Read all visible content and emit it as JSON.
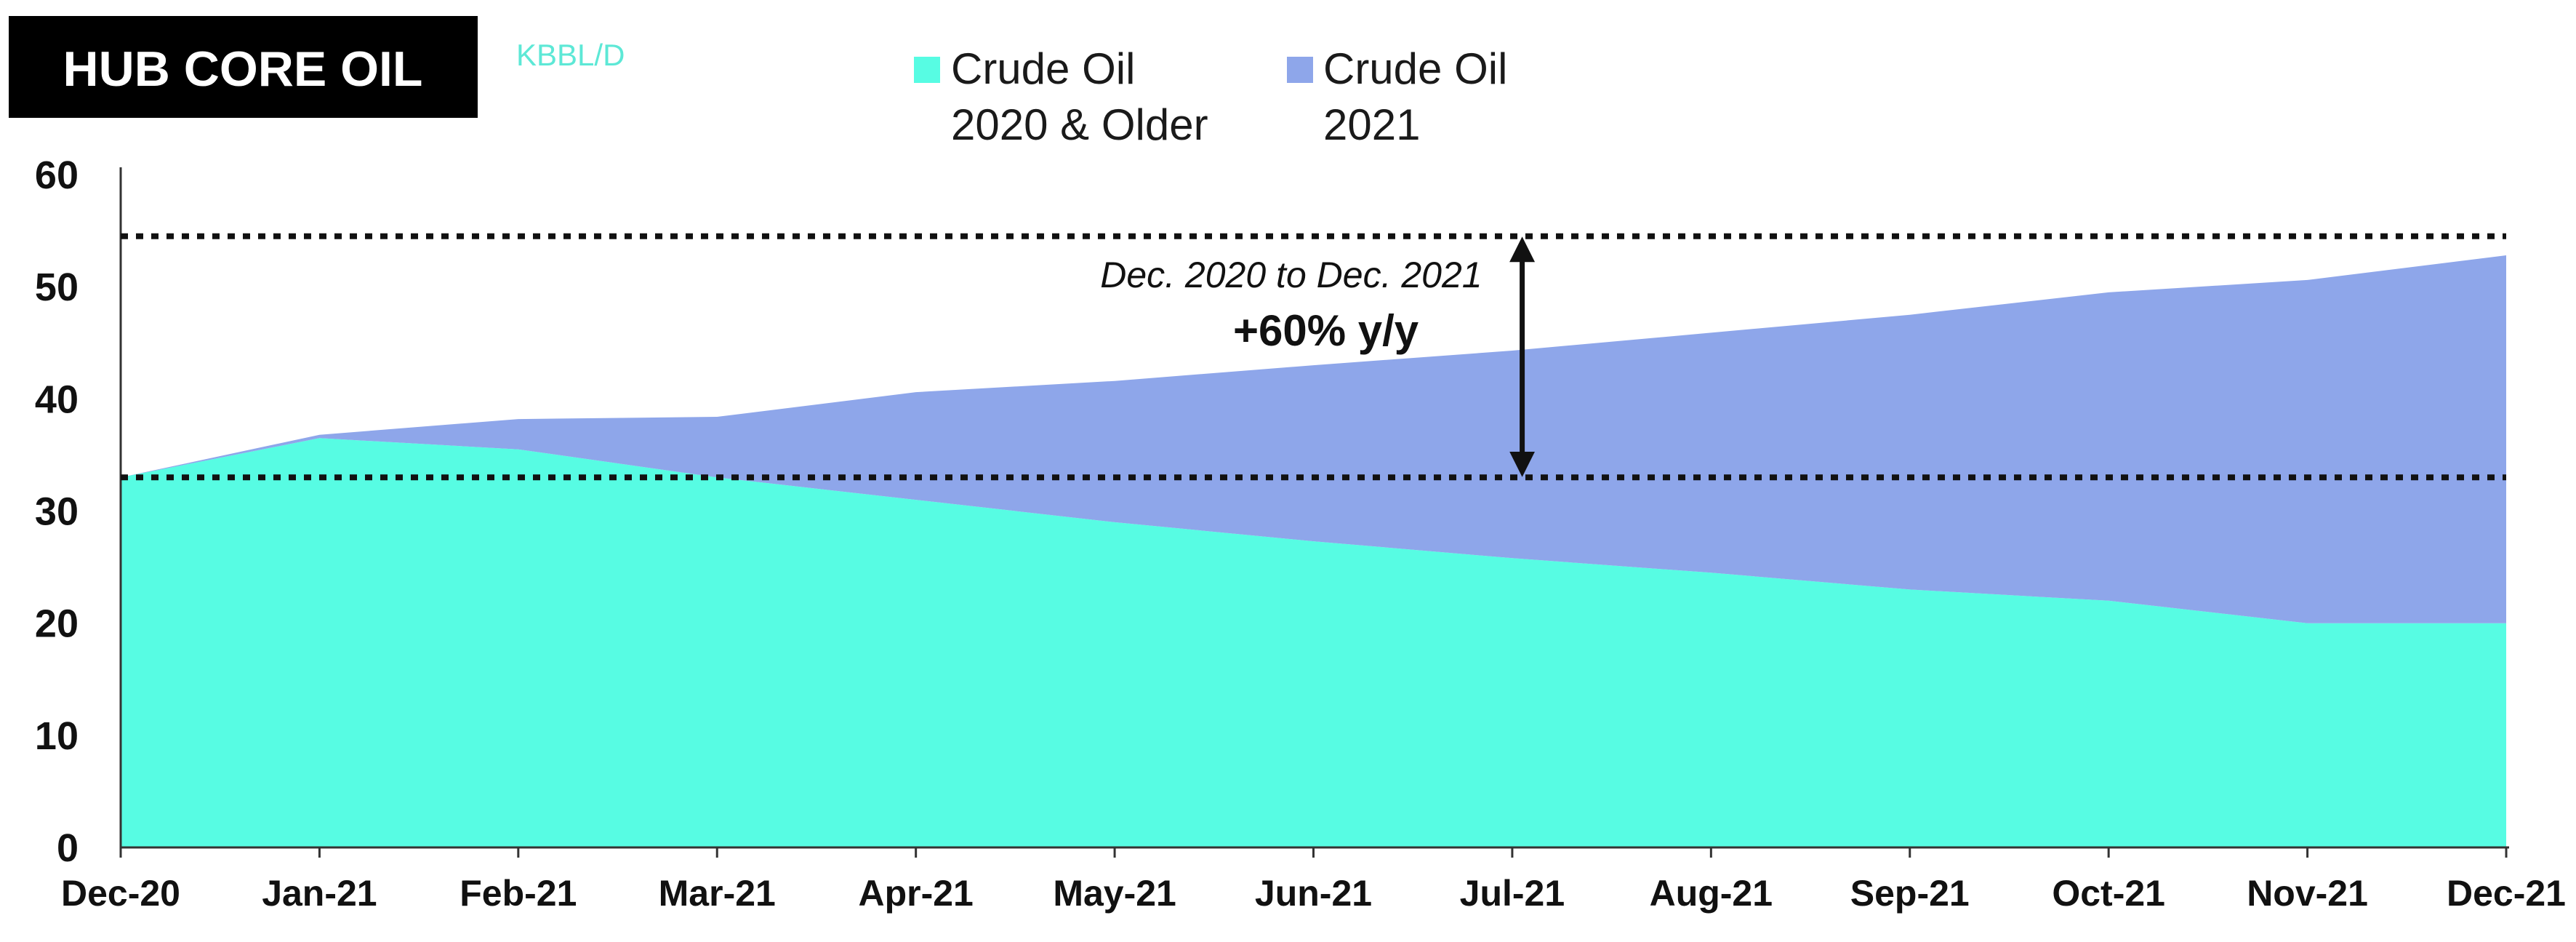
{
  "chart_data": {
    "type": "area",
    "title": "HUB CORE OIL",
    "unit": "KBBL/D",
    "categories": [
      "Dec-20",
      "Jan-21",
      "Feb-21",
      "Mar-21",
      "Apr-21",
      "May-21",
      "Jun-21",
      "Jul-21",
      "Aug-21",
      "Sep-21",
      "Oct-21",
      "Nov-21",
      "Dec-21"
    ],
    "series": [
      {
        "name_lines": [
          "Crude Oil",
          "2020 & Older"
        ],
        "color": "#57fce3",
        "values": [
          33,
          36.5,
          35.5,
          33,
          31,
          29,
          27.3,
          25.8,
          24.5,
          23,
          22,
          20,
          20
        ]
      },
      {
        "name_lines": [
          "Crude Oil",
          "2021"
        ],
        "color": "#8ea6ea",
        "values": [
          0,
          0.3,
          2.7,
          5.4,
          9.6,
          12.6,
          15.7,
          18.5,
          21.4,
          24.5,
          27.5,
          30.6,
          32.8
        ]
      }
    ],
    "ylim": [
      0,
      60
    ],
    "yticks": [
      0,
      10,
      20,
      30,
      40,
      50,
      60
    ],
    "reference_lines": [
      54.5,
      33
    ],
    "annotation": {
      "line1": "Dec. 2020 to Dec. 2021",
      "line2": "+60% y/y",
      "from": 33,
      "to": 54.5,
      "at_x": 7.05
    },
    "legend_position": "top-center",
    "grid": false
  }
}
